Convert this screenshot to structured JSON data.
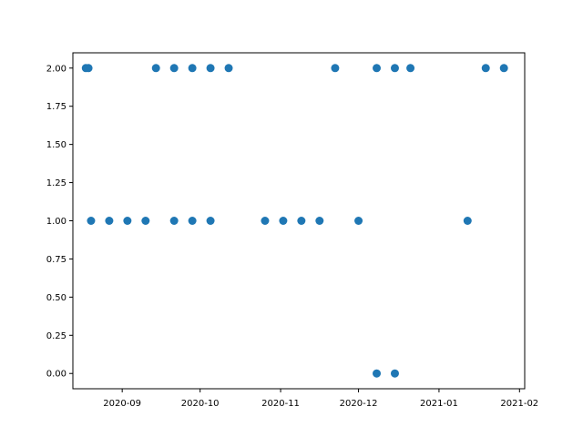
{
  "chart_data": {
    "type": "scatter",
    "title": "",
    "xlabel": "",
    "ylabel": "",
    "x_axis_type": "date",
    "xlim": [
      "2020-08-13",
      "2021-02-03"
    ],
    "ylim": [
      -0.1,
      2.1
    ],
    "x_ticks": [
      "2020-09-01",
      "2020-10-01",
      "2020-11-01",
      "2020-12-01",
      "2021-01-01",
      "2021-02-01"
    ],
    "x_tick_labels": [
      "2020-09",
      "2020-10",
      "2020-11",
      "2020-12",
      "2021-01",
      "2021-02"
    ],
    "y_ticks": [
      0.0,
      0.25,
      0.5,
      0.75,
      1.0,
      1.25,
      1.5,
      1.75,
      2.0
    ],
    "y_tick_labels": [
      "0.00",
      "0.25",
      "0.50",
      "0.75",
      "1.00",
      "1.25",
      "1.50",
      "1.75",
      "2.00"
    ],
    "grid": false,
    "legend": "none",
    "point_color": "#1f77b4",
    "series": [
      {
        "points": [
          {
            "x": "2020-08-18",
            "y": 2
          },
          {
            "x": "2020-08-19",
            "y": 2
          },
          {
            "x": "2020-09-14",
            "y": 2
          },
          {
            "x": "2020-09-21",
            "y": 2
          },
          {
            "x": "2020-09-28",
            "y": 2
          },
          {
            "x": "2020-10-05",
            "y": 2
          },
          {
            "x": "2020-10-12",
            "y": 2
          },
          {
            "x": "2020-11-22",
            "y": 2
          },
          {
            "x": "2020-12-08",
            "y": 2
          },
          {
            "x": "2020-12-15",
            "y": 2
          },
          {
            "x": "2020-12-21",
            "y": 2
          },
          {
            "x": "2021-01-19",
            "y": 2
          },
          {
            "x": "2021-01-26",
            "y": 2
          },
          {
            "x": "2020-08-20",
            "y": 1
          },
          {
            "x": "2020-08-27",
            "y": 1
          },
          {
            "x": "2020-09-03",
            "y": 1
          },
          {
            "x": "2020-09-10",
            "y": 1
          },
          {
            "x": "2020-09-21",
            "y": 1
          },
          {
            "x": "2020-09-28",
            "y": 1
          },
          {
            "x": "2020-10-05",
            "y": 1
          },
          {
            "x": "2020-10-26",
            "y": 1
          },
          {
            "x": "2020-11-02",
            "y": 1
          },
          {
            "x": "2020-11-09",
            "y": 1
          },
          {
            "x": "2020-11-16",
            "y": 1
          },
          {
            "x": "2020-12-01",
            "y": 1
          },
          {
            "x": "2021-01-12",
            "y": 1
          },
          {
            "x": "2020-12-08",
            "y": 0
          },
          {
            "x": "2020-12-15",
            "y": 0
          }
        ]
      }
    ]
  }
}
